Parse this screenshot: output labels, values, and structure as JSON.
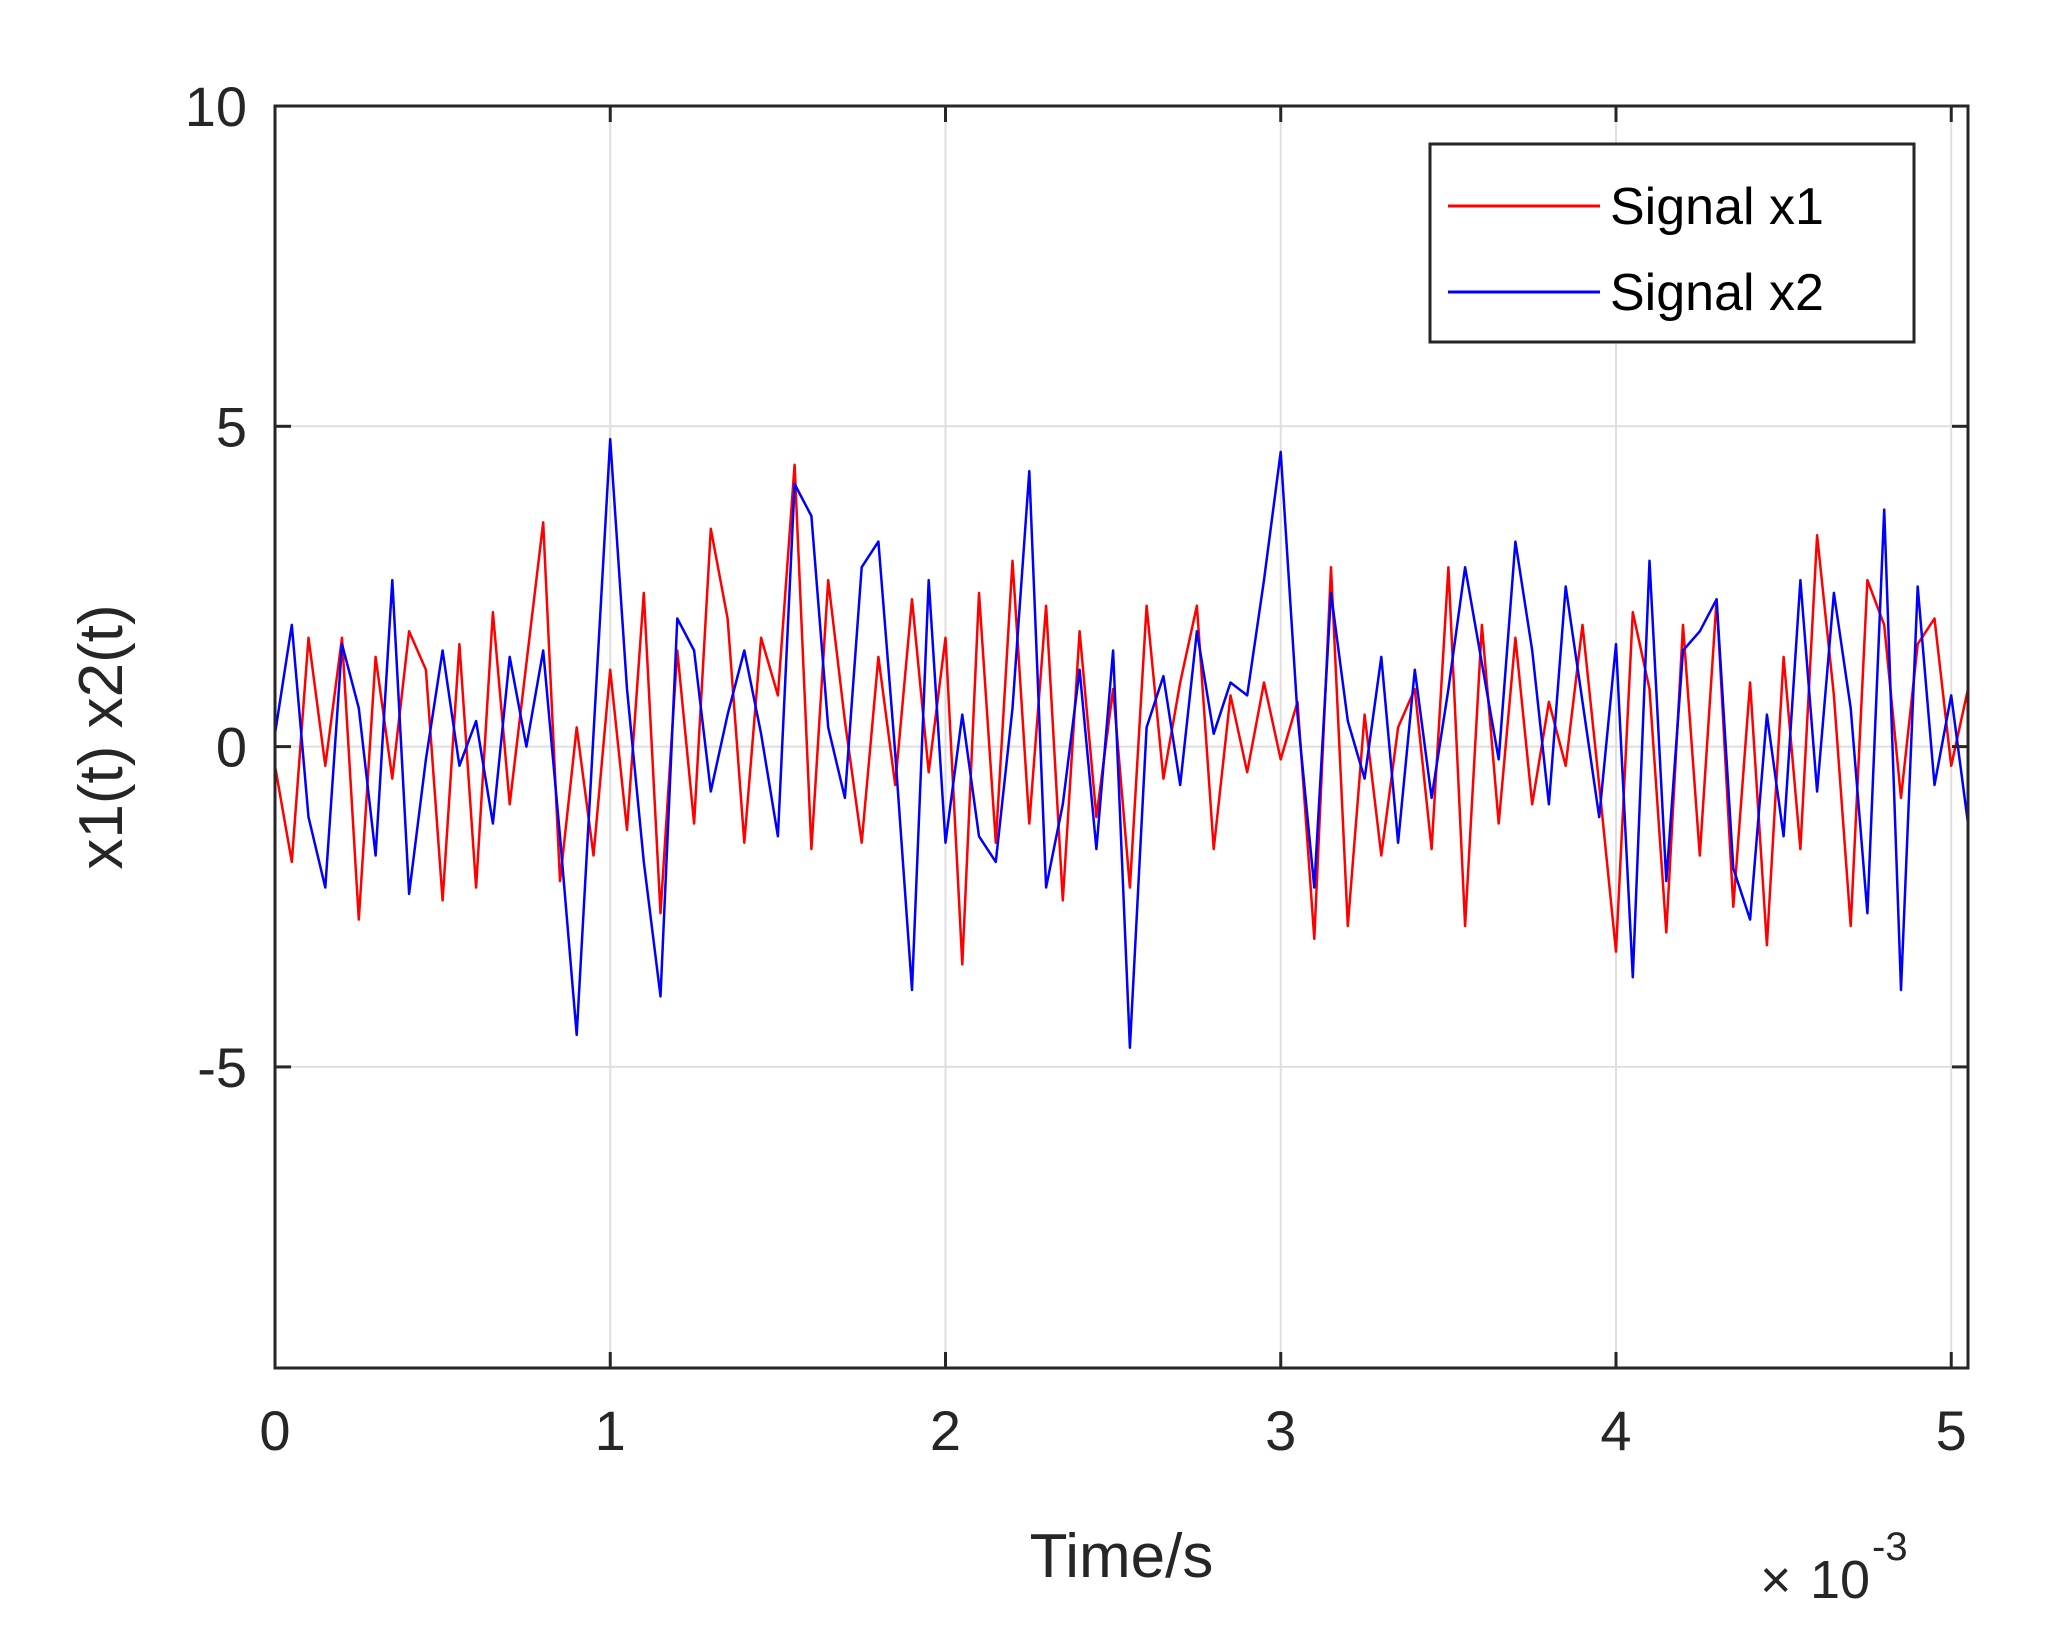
{
  "chart_data": {
    "type": "line",
    "xlabel": "Time/s",
    "ylabel": "x1(t) x2(t)",
    "x_multiplier": {
      "times": "×",
      "base": "10",
      "exponent": "-3"
    },
    "xlim": [
      0,
      5.05
    ],
    "ylim": [
      -9.7,
      10
    ],
    "xticks": [
      0,
      1,
      2,
      3,
      4,
      5
    ],
    "xtick_labels": [
      "0",
      "1",
      "2",
      "3",
      "4",
      "5"
    ],
    "yticks": [
      -5,
      0,
      5,
      10
    ],
    "ytick_labels": [
      "-5",
      "0",
      "5",
      "10"
    ],
    "grid": true,
    "legend_position": "top-right",
    "x_units_note": "x values in units of 1e-3 s as printed on axis",
    "series": [
      {
        "name": "Signal x1",
        "color": "#ff0000",
        "x": [
          0,
          0.05,
          0.1,
          0.15,
          0.2,
          0.25,
          0.3,
          0.35,
          0.4,
          0.45,
          0.5,
          0.55,
          0.6,
          0.65,
          0.7,
          0.75,
          0.8,
          0.85,
          0.9,
          0.95,
          1.0,
          1.05,
          1.1,
          1.15,
          1.2,
          1.25,
          1.3,
          1.35,
          1.4,
          1.45,
          1.5,
          1.55,
          1.6,
          1.65,
          1.7,
          1.75,
          1.8,
          1.85,
          1.9,
          1.95,
          2.0,
          2.05,
          2.1,
          2.15,
          2.2,
          2.25,
          2.3,
          2.35,
          2.4,
          2.45,
          2.5,
          2.55,
          2.6,
          2.65,
          2.7,
          2.75,
          2.8,
          2.85,
          2.9,
          2.95,
          3.0,
          3.05,
          3.1,
          3.15,
          3.2,
          3.25,
          3.3,
          3.35,
          3.4,
          3.45,
          3.5,
          3.55,
          3.6,
          3.65,
          3.7,
          3.75,
          3.8,
          3.85,
          3.9,
          3.95,
          4.0,
          4.05,
          4.1,
          4.15,
          4.2,
          4.25,
          4.3,
          4.35,
          4.4,
          4.45,
          4.5,
          4.55,
          4.6,
          4.65,
          4.7,
          4.75,
          4.8,
          4.85,
          4.9,
          4.95,
          5.0,
          5.05
        ],
        "y": [
          -0.3,
          -1.8,
          1.7,
          -0.3,
          1.7,
          -2.7,
          1.4,
          -0.5,
          1.8,
          1.2,
          -2.4,
          1.6,
          -2.2,
          2.1,
          -0.9,
          1.3,
          3.5,
          -2.1,
          0.3,
          -1.7,
          1.2,
          -1.3,
          2.4,
          -2.6,
          1.5,
          -1.2,
          3.4,
          2.0,
          -1.5,
          1.7,
          0.8,
          4.4,
          -1.6,
          2.6,
          0.4,
          -1.5,
          1.4,
          -0.6,
          2.3,
          -0.4,
          1.7,
          -3.4,
          2.4,
          -1.5,
          2.9,
          -1.2,
          2.2,
          -2.4,
          1.8,
          -1.1,
          0.9,
          -2.2,
          2.2,
          -0.5,
          1.0,
          2.2,
          -1.6,
          0.8,
          -0.4,
          1.0,
          -0.2,
          0.7,
          -3.0,
          2.8,
          -2.8,
          0.5,
          -1.7,
          0.3,
          0.9,
          -1.6,
          2.8,
          -2.8,
          1.9,
          -1.2,
          1.7,
          -0.9,
          0.7,
          -0.3,
          1.9,
          -0.6,
          -3.2,
          2.1,
          0.9,
          -2.9,
          1.9,
          -1.7,
          2.3,
          -2.5,
          1.0,
          -3.1,
          1.4,
          -1.6,
          3.3,
          0.8,
          -2.8,
          2.6,
          1.9,
          -0.8,
          1.6,
          2.0,
          -0.3,
          0.9
        ]
      },
      {
        "name": "Signal x2",
        "color": "#0000ff",
        "x": [
          0,
          0.05,
          0.1,
          0.15,
          0.2,
          0.25,
          0.3,
          0.35,
          0.4,
          0.45,
          0.5,
          0.55,
          0.6,
          0.65,
          0.7,
          0.75,
          0.8,
          0.85,
          0.9,
          0.95,
          1.0,
          1.05,
          1.1,
          1.15,
          1.2,
          1.25,
          1.3,
          1.35,
          1.4,
          1.45,
          1.5,
          1.55,
          1.6,
          1.65,
          1.7,
          1.75,
          1.8,
          1.85,
          1.9,
          1.95,
          2.0,
          2.05,
          2.1,
          2.15,
          2.2,
          2.25,
          2.3,
          2.35,
          2.4,
          2.45,
          2.5,
          2.55,
          2.6,
          2.65,
          2.7,
          2.75,
          2.8,
          2.85,
          2.9,
          2.95,
          3.0,
          3.05,
          3.1,
          3.15,
          3.2,
          3.25,
          3.3,
          3.35,
          3.4,
          3.45,
          3.5,
          3.55,
          3.6,
          3.65,
          3.7,
          3.75,
          3.8,
          3.85,
          3.9,
          3.95,
          4.0,
          4.05,
          4.1,
          4.15,
          4.2,
          4.25,
          4.3,
          4.35,
          4.4,
          4.45,
          4.5,
          4.55,
          4.6,
          4.65,
          4.7,
          4.75,
          4.8,
          4.85,
          4.9,
          4.95,
          5.0,
          5.05
        ],
        "y": [
          0.2,
          1.9,
          -1.1,
          -2.2,
          1.6,
          0.6,
          -1.7,
          2.6,
          -2.3,
          -0.2,
          1.5,
          -0.3,
          0.4,
          -1.2,
          1.4,
          0.0,
          1.5,
          -1.4,
          -4.5,
          0.2,
          4.8,
          0.9,
          -1.8,
          -3.9,
          2.0,
          1.5,
          -0.7,
          0.5,
          1.5,
          0.2,
          -1.4,
          4.1,
          3.6,
          0.3,
          -0.8,
          2.8,
          3.2,
          -0.1,
          -3.8,
          2.6,
          -1.5,
          0.5,
          -1.4,
          -1.8,
          0.6,
          4.3,
          -2.2,
          -0.9,
          1.2,
          -1.6,
          1.5,
          -4.7,
          0.3,
          1.1,
          -0.6,
          1.8,
          0.2,
          1.0,
          0.8,
          2.6,
          4.6,
          0.5,
          -2.2,
          2.4,
          0.4,
          -0.5,
          1.4,
          -1.5,
          1.2,
          -0.8,
          0.9,
          2.8,
          1.3,
          -0.2,
          3.2,
          1.5,
          -0.9,
          2.5,
          0.7,
          -1.1,
          1.6,
          -3.6,
          2.9,
          -2.1,
          1.5,
          1.8,
          2.3,
          -1.9,
          -2.7,
          0.5,
          -1.4,
          2.6,
          -0.7,
          2.4,
          0.6,
          -2.6,
          3.7,
          -3.8,
          2.5,
          -0.6,
          0.8,
          -1.2
        ]
      }
    ]
  }
}
